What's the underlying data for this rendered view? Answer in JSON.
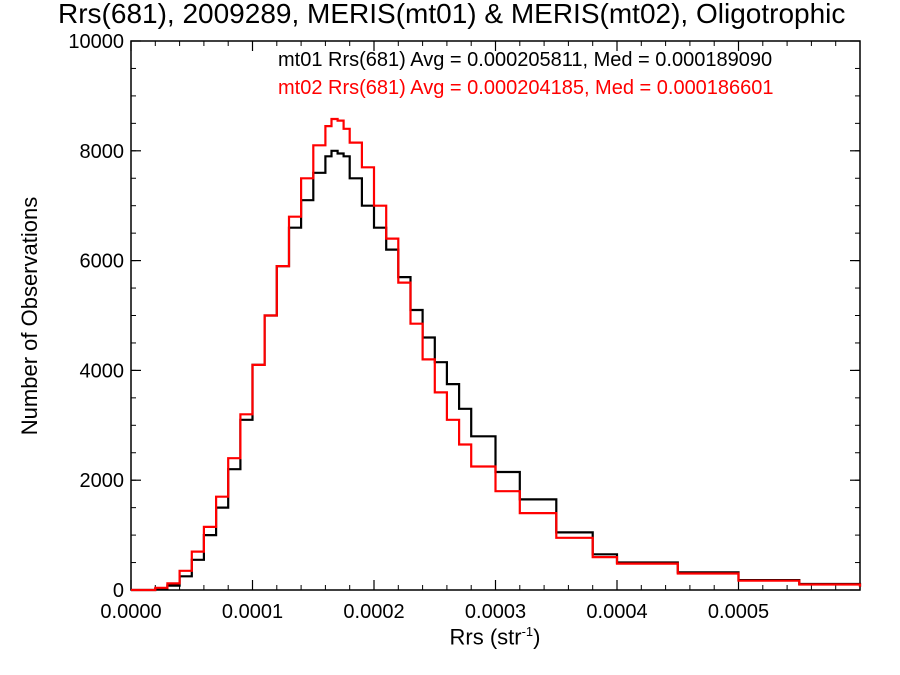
{
  "chart_data": {
    "type": "line",
    "title": "Rrs(681), 2009289, MERIS(mt01) & MERIS(mt02), Oligotrophic",
    "xlabel_base": "Rrs (str",
    "xlabel_sup": "-1",
    "xlabel_close": ")",
    "ylabel": "Number of Observations",
    "xlim": [
      0.0,
      0.0006
    ],
    "ylim": [
      0,
      10000
    ],
    "x_ticks": [
      "0.0000",
      "0.0001",
      "0.0002",
      "0.0003",
      "0.0004",
      "0.0005"
    ],
    "y_ticks": [
      "0",
      "2000",
      "4000",
      "6000",
      "8000",
      "10000"
    ],
    "grid": false,
    "legend_placement": "top-right",
    "series": [
      {
        "name": "mt01",
        "legend": "mt01 Rrs(681) Avg = 0.000205811, Med = 0.000189090",
        "color": "#000000",
        "x": [
          0.0,
          2e-05,
          3e-05,
          4e-05,
          5e-05,
          6e-05,
          7e-05,
          8e-05,
          9e-05,
          0.0001,
          0.00011,
          0.00012,
          0.00013,
          0.00014,
          0.00015,
          0.00016,
          0.000165,
          0.00017,
          0.000175,
          0.00018,
          0.00019,
          0.0002,
          0.00021,
          0.00022,
          0.00023,
          0.00024,
          0.00025,
          0.00026,
          0.00027,
          0.00028,
          0.0003,
          0.00032,
          0.00035,
          0.00038,
          0.0004,
          0.00045,
          0.0005,
          0.00055,
          0.0006
        ],
        "y": [
          0,
          20,
          80,
          250,
          550,
          1000,
          1500,
          2200,
          3100,
          4100,
          5000,
          5900,
          6600,
          7100,
          7600,
          7900,
          8000,
          7950,
          7900,
          7500,
          7000,
          6600,
          6200,
          5700,
          5100,
          4600,
          4150,
          3750,
          3300,
          2800,
          2150,
          1650,
          1050,
          650,
          500,
          320,
          180,
          110,
          60
        ]
      },
      {
        "name": "mt02",
        "legend": "mt02 Rrs(681) Avg = 0.000204185, Med = 0.000186601",
        "color": "#ff0000",
        "x": [
          0.0,
          2e-05,
          3e-05,
          4e-05,
          5e-05,
          6e-05,
          7e-05,
          8e-05,
          9e-05,
          0.0001,
          0.00011,
          0.00012,
          0.00013,
          0.00014,
          0.00015,
          0.00016,
          0.000165,
          0.00017,
          0.000175,
          0.00018,
          0.00019,
          0.0002,
          0.00021,
          0.00022,
          0.00023,
          0.00024,
          0.00025,
          0.00026,
          0.00027,
          0.00028,
          0.0003,
          0.00032,
          0.00035,
          0.00038,
          0.0004,
          0.00045,
          0.0005,
          0.00055,
          0.0006
        ],
        "y": [
          0,
          40,
          120,
          350,
          700,
          1150,
          1700,
          2400,
          3200,
          4100,
          5000,
          5900,
          6800,
          7500,
          8100,
          8450,
          8580,
          8550,
          8400,
          8150,
          7700,
          7000,
          6400,
          5600,
          4850,
          4200,
          3600,
          3100,
          2650,
          2250,
          1800,
          1400,
          950,
          600,
          480,
          300,
          170,
          100,
          60
        ]
      }
    ]
  }
}
